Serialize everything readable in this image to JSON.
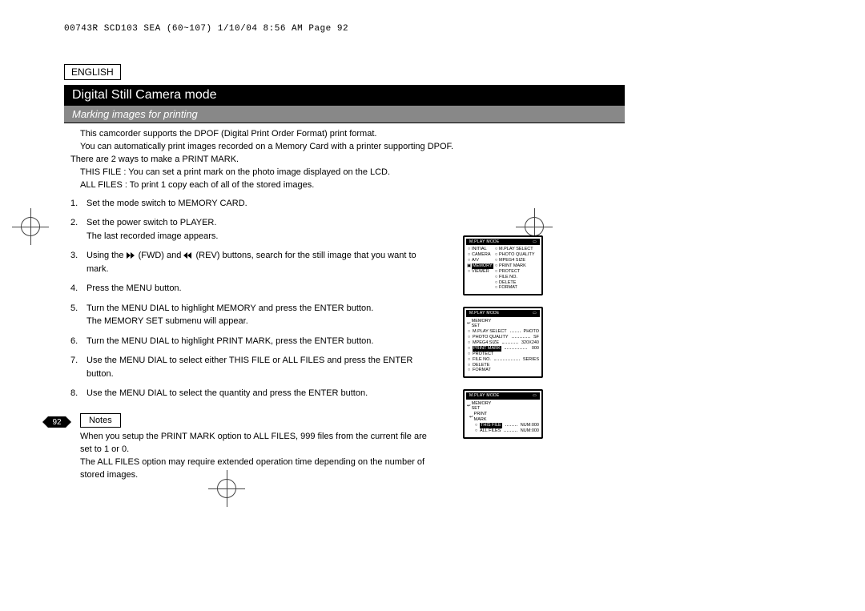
{
  "meta": {
    "header_line": "00743R SCD103 SEA (60~107)  1/10/04 8:56 AM  Page 92",
    "language": "ENGLISH",
    "mode_title": "Digital Still Camera mode",
    "section_title": "Marking images for printing",
    "page_number": "92"
  },
  "intro": {
    "l1": "This camcorder supports the DPOF (Digital Print Order Format) print format.",
    "l2": "You can automatically print images recorded on a Memory Card with a printer supporting DPOF.",
    "l3": "There are 2 ways to make a PRINT MARK.",
    "l4": "THIS FILE : You can set a print mark on the photo image displayed on the LCD.",
    "l5": "ALL FILES : To print 1 copy each of all of the stored images."
  },
  "steps": {
    "s1": "Set the mode switch to MEMORY CARD.",
    "s2a": "Set the power switch to PLAYER.",
    "s2b": "The last recorded image appears.",
    "s3a": "Using the ",
    "s3b": " (FWD) and ",
    "s3c": " (REV) buttons, search for the still image that you want to mark.",
    "s4": "Press the MENU button.",
    "s5a": "Turn the MENU DIAL to highlight MEMORY and press the ENTER button.",
    "s5b": "The MEMORY SET submenu will appear.",
    "s6": "Turn the MENU DIAL to highlight PRINT MARK, press the ENTER button.",
    "s7": "Use the MENU DIAL to select either THIS FILE or ALL FILES and press the ENTER button.",
    "s8": "Use the MENU DIAL to select the quantity and press the ENTER button."
  },
  "notes": {
    "label": "Notes",
    "n1": "When you setup the PRINT MARK option to ALL FILES, 999 files from the current file are set to 1 or 0.",
    "n2": "The ALL FILES option may require extended operation time depending on the number of stored images."
  },
  "lcd1": {
    "title": "M.PLAY MODE",
    "cam_icon": "▣",
    "left": [
      "INITIAL",
      "CAMERA",
      "A/V",
      "MEMORY",
      "VIEWER"
    ],
    "right": [
      "M.PLAY SELECT",
      "PHOTO QUALITY",
      "MPEG4 SIZE",
      "PRINT MARK",
      "PROTECT",
      "FILE NO.",
      "DELETE",
      "FORMAT"
    ]
  },
  "lcd2": {
    "title": "M.PLAY MODE",
    "header": "MEMORY SET",
    "rows": [
      {
        "label": "M.PLAY SELECT",
        "value": "PHOTO"
      },
      {
        "label": "PHOTO QUALITY",
        "value": "SF"
      },
      {
        "label": "MPEG4 SIZE",
        "value": "320X240"
      },
      {
        "label": "PRINT MARK",
        "value": "000",
        "sel": true,
        "icon": "🖶"
      },
      {
        "label": "PROTECT",
        "value": "",
        "icon": "🔒"
      },
      {
        "label": "FILE NO.",
        "value": "SERIES"
      },
      {
        "label": "DELETE",
        "value": ""
      },
      {
        "label": "FORMAT",
        "value": ""
      }
    ]
  },
  "lcd3": {
    "title": "M.PLAY MODE",
    "header": "MEMORY SET",
    "sub": "PRINT MARK",
    "rows": [
      {
        "label": "THIS FILE",
        "value": "NUM:000",
        "sel": true
      },
      {
        "label": "ALL FILES",
        "value": "NUM:000"
      }
    ]
  },
  "colors": {
    "header_bg": "#000000",
    "section_bg": "#888888",
    "text": "#000000",
    "bg": "#ffffff"
  }
}
